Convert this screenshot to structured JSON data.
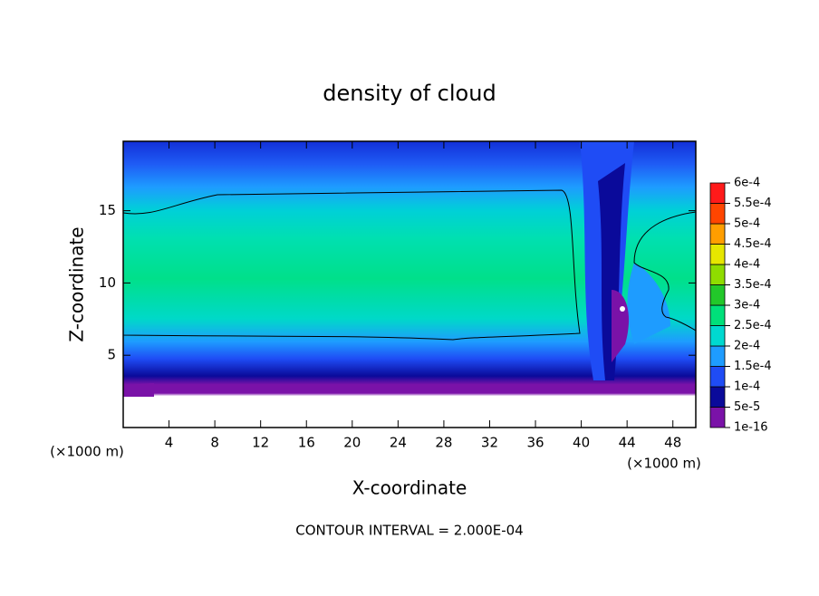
{
  "chart_data": {
    "type": "contour",
    "title": "density of cloud",
    "x_label": "X-coordinate",
    "y_label": "Z-coordinate",
    "x_unit_label": "(×1000 m)",
    "note": "CONTOUR INTERVAL = 2.000E-04",
    "xlim": [
      0,
      50
    ],
    "ylim": [
      0,
      19.8
    ],
    "xticks": [
      4,
      8,
      12,
      16,
      20,
      24,
      28,
      32,
      36,
      40,
      44,
      48
    ],
    "yticks": [
      5,
      10,
      15
    ],
    "colorbar": {
      "ticks": [
        {
          "value": 1e-16,
          "label": "1e-16"
        },
        {
          "value": 5e-05,
          "label": "5e-5"
        },
        {
          "value": 0.0001,
          "label": "1e-4"
        },
        {
          "value": 0.00015,
          "label": "1.5e-4"
        },
        {
          "value": 0.0002,
          "label": "2e-4"
        },
        {
          "value": 0.00025,
          "label": "2.5e-4"
        },
        {
          "value": 0.0003,
          "label": "3e-4"
        },
        {
          "value": 0.00035,
          "label": "3.5e-4"
        },
        {
          "value": 0.0004,
          "label": "4e-4"
        },
        {
          "value": 0.00045,
          "label": "4.5e-4"
        },
        {
          "value": 0.0005,
          "label": "5e-4"
        },
        {
          "value": 0.00055,
          "label": "5.5e-4"
        },
        {
          "value": 0.0006,
          "label": "6e-4"
        }
      ],
      "colors": [
        "#7a12a8",
        "#0a0a9a",
        "#1f4cf5",
        "#1e9cff",
        "#00d9d0",
        "#00e07a",
        "#22c82a",
        "#8fdc00",
        "#e6e600",
        "#ff9e00",
        "#ff4500",
        "#ff1a1a"
      ]
    }
  }
}
